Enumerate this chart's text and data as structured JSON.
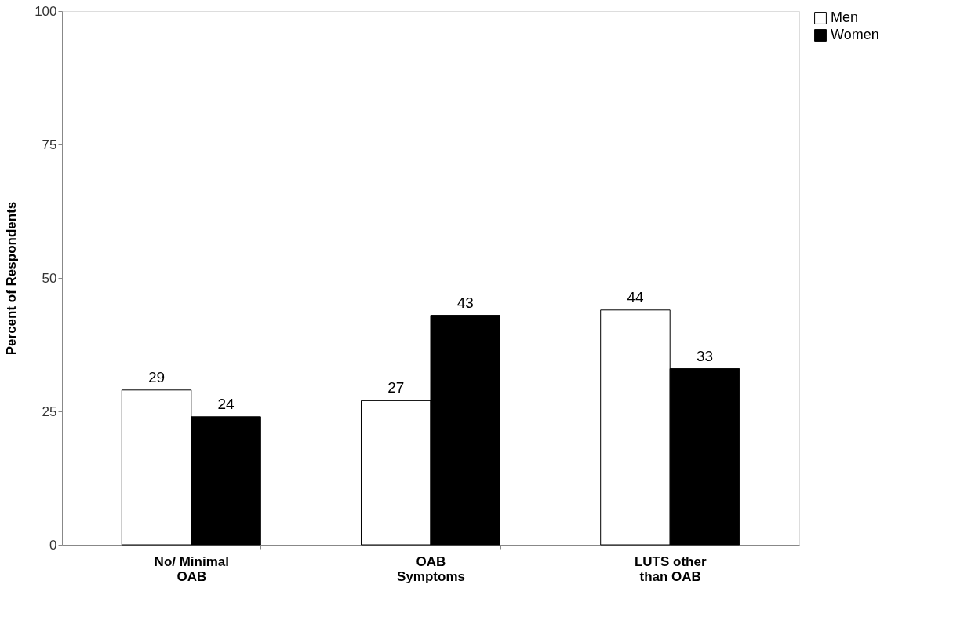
{
  "chart_data": {
    "type": "bar",
    "categories": [
      "No/ Minimal\nOAB",
      "OAB\nSymptoms",
      "LUTS other\nthan OAB"
    ],
    "series": [
      {
        "name": "Men",
        "color": "#ffffff",
        "values": [
          29,
          27,
          44
        ]
      },
      {
        "name": "Women",
        "color": "#000000",
        "values": [
          24,
          43,
          33
        ]
      }
    ],
    "ylabel": "Percent of Respondents",
    "ylim": [
      0,
      100
    ],
    "yticks": [
      0,
      25,
      50,
      75,
      100
    ],
    "grid": false,
    "legend": "right",
    "data_labels": true
  }
}
